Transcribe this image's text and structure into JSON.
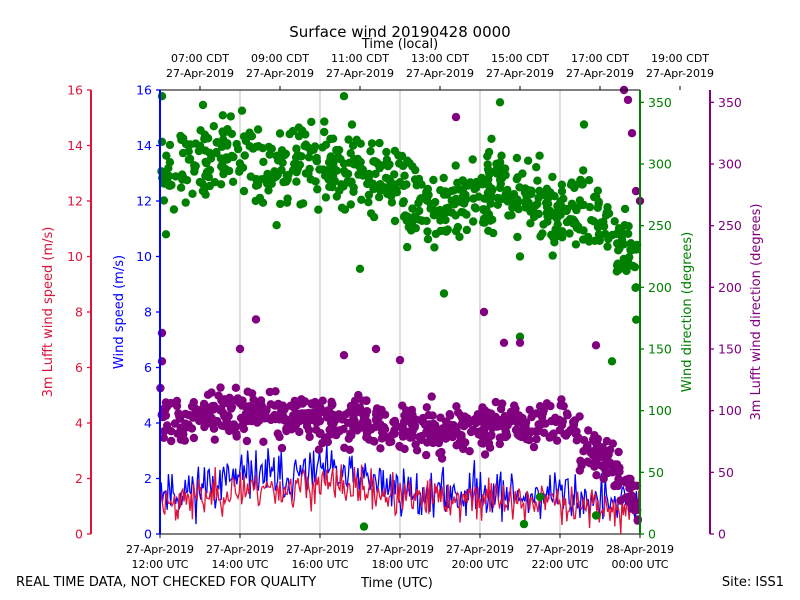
{
  "chart_data": {
    "type": "scatter",
    "title": "Surface wind 20190428 0000",
    "top_axis_label": "Time (local)",
    "xlabel": "Time (UTC)",
    "top_ticks": [
      {
        "time": "07:00 CDT",
        "date": "27-Apr-2019"
      },
      {
        "time": "09:00 CDT",
        "date": "27-Apr-2019"
      },
      {
        "time": "11:00 CDT",
        "date": "27-Apr-2019"
      },
      {
        "time": "13:00 CDT",
        "date": "27-Apr-2019"
      },
      {
        "time": "15:00 CDT",
        "date": "27-Apr-2019"
      },
      {
        "time": "17:00 CDT",
        "date": "27-Apr-2019"
      },
      {
        "time": "19:00 CDT",
        "date": "27-Apr-2019"
      }
    ],
    "bottom_ticks": [
      {
        "date": "27-Apr-2019",
        "time": "12:00 UTC"
      },
      {
        "date": "27-Apr-2019",
        "time": "14:00 UTC"
      },
      {
        "date": "27-Apr-2019",
        "time": "16:00 UTC"
      },
      {
        "date": "27-Apr-2019",
        "time": "18:00 UTC"
      },
      {
        "date": "27-Apr-2019",
        "time": "20:00 UTC"
      },
      {
        "date": "27-Apr-2019",
        "time": "22:00 UTC"
      },
      {
        "date": "28-Apr-2019",
        "time": "00:00 UTC"
      }
    ],
    "xlim_hours_utc": [
      12.0,
      24.0
    ],
    "axes": {
      "lufft_speed": {
        "label": "3m Lufft wind speed (m/s)",
        "ylim": [
          0,
          16
        ],
        "ticks": [
          "0",
          "2",
          "4",
          "6",
          "8",
          "10",
          "12",
          "14",
          "16"
        ],
        "color": "#dc143c"
      },
      "wind_speed": {
        "label": "Wind speed (m/s)",
        "ylim": [
          0,
          16
        ],
        "ticks": [
          "0",
          "2",
          "4",
          "6",
          "8",
          "10",
          "12",
          "14",
          "16"
        ],
        "color": "#0000ff"
      },
      "wind_dir": {
        "label": "Wind direction (degrees)",
        "ylim": [
          0,
          360
        ],
        "ticks": [
          "0",
          "50",
          "100",
          "150",
          "200",
          "250",
          "300",
          "350"
        ],
        "color": "#008000"
      },
      "lufft_dir": {
        "label": "3m Lufft wind direction (degrees)",
        "ylim": [
          0,
          360
        ],
        "ticks": [
          "0",
          "50",
          "100",
          "150",
          "200",
          "250",
          "300",
          "350"
        ],
        "color": "#800080"
      }
    },
    "series": [
      {
        "name": "Wind speed",
        "kind": "line",
        "axis": "wind_speed",
        "color": "#0000ff",
        "points": [
          [
            12,
            1.6
          ],
          [
            12.5,
            1.5
          ],
          [
            13,
            1.7
          ],
          [
            13.5,
            1.9
          ],
          [
            14,
            2.0
          ],
          [
            14.5,
            2.2
          ],
          [
            15,
            2.0
          ],
          [
            15.5,
            2.1
          ],
          [
            16,
            2.3
          ],
          [
            16.5,
            2.1
          ],
          [
            17,
            2.0
          ],
          [
            17.5,
            1.8
          ],
          [
            18,
            1.6
          ],
          [
            18.5,
            1.4
          ],
          [
            19,
            1.5
          ],
          [
            19.5,
            1.4
          ],
          [
            20,
            1.6
          ],
          [
            20.5,
            1.5
          ],
          [
            21,
            1.3
          ],
          [
            21.5,
            1.4
          ],
          [
            22,
            1.5
          ],
          [
            22.5,
            1.3
          ],
          [
            23,
            1.2
          ],
          [
            23.5,
            1.0
          ],
          [
            24,
            1.1
          ]
        ],
        "noise": 0.6
      },
      {
        "name": "3m Lufft wind speed",
        "kind": "line",
        "axis": "lufft_speed",
        "color": "#dc143c",
        "points": [
          [
            12,
            1.2
          ],
          [
            12.5,
            1.2
          ],
          [
            13,
            1.3
          ],
          [
            13.5,
            1.5
          ],
          [
            14,
            1.6
          ],
          [
            14.5,
            1.7
          ],
          [
            15,
            1.6
          ],
          [
            15.5,
            1.7
          ],
          [
            16,
            1.8
          ],
          [
            16.5,
            1.7
          ],
          [
            17,
            1.6
          ],
          [
            17.5,
            1.5
          ],
          [
            18,
            1.3
          ],
          [
            18.5,
            1.2
          ],
          [
            19,
            1.3
          ],
          [
            19.5,
            1.2
          ],
          [
            20,
            1.3
          ],
          [
            20.5,
            1.3
          ],
          [
            21,
            1.1
          ],
          [
            21.5,
            1.2
          ],
          [
            22,
            1.2
          ],
          [
            22.5,
            1.1
          ],
          [
            23,
            1.0
          ],
          [
            23.5,
            0.8
          ],
          [
            24,
            0.9
          ]
        ],
        "noise": 0.5
      },
      {
        "name": "Wind direction",
        "kind": "scatter",
        "axis": "wind_dir",
        "color": "#008000",
        "points": [
          [
            12,
            295
          ],
          [
            12.5,
            300
          ],
          [
            13,
            305
          ],
          [
            13.5,
            310
          ],
          [
            14,
            305
          ],
          [
            14.5,
            300
          ],
          [
            15,
            298
          ],
          [
            15.5,
            300
          ],
          [
            16,
            303
          ],
          [
            16.5,
            300
          ],
          [
            17,
            295
          ],
          [
            17.5,
            290
          ],
          [
            18,
            280
          ],
          [
            18.5,
            270
          ],
          [
            19,
            262
          ],
          [
            19.5,
            265
          ],
          [
            20,
            275
          ],
          [
            20.5,
            285
          ],
          [
            21,
            275
          ],
          [
            21.5,
            268
          ],
          [
            22,
            262
          ],
          [
            22.5,
            268
          ],
          [
            23,
            255
          ],
          [
            23.5,
            235
          ],
          [
            24,
            220
          ]
        ],
        "spread": 22,
        "count": 650,
        "outliers": [
          [
            12.05,
            355
          ],
          [
            12.05,
            318
          ],
          [
            12.15,
            243
          ],
          [
            14.1,
            278
          ],
          [
            16.6,
            355
          ],
          [
            17.0,
            215
          ],
          [
            17.1,
            6
          ],
          [
            19.1,
            195
          ],
          [
            20.5,
            350
          ],
          [
            21.0,
            225
          ],
          [
            21.0,
            160
          ],
          [
            21.1,
            8
          ],
          [
            21.5,
            30
          ],
          [
            22.6,
            332
          ],
          [
            22.9,
            15
          ],
          [
            23.3,
            140
          ],
          [
            23.6,
            235
          ],
          [
            23.9,
            200
          ]
        ]
      },
      {
        "name": "3m Lufft wind direction",
        "kind": "scatter",
        "axis": "lufft_dir",
        "color": "#800080",
        "points": [
          [
            12,
            95
          ],
          [
            12.5,
            92
          ],
          [
            13,
            95
          ],
          [
            13.5,
            97
          ],
          [
            14,
            97
          ],
          [
            14.5,
            97
          ],
          [
            15,
            95
          ],
          [
            15.5,
            95
          ],
          [
            16,
            92
          ],
          [
            16.5,
            90
          ],
          [
            17,
            90
          ],
          [
            17.5,
            88
          ],
          [
            18,
            86
          ],
          [
            18.5,
            85
          ],
          [
            19,
            85
          ],
          [
            19.5,
            85
          ],
          [
            20,
            85
          ],
          [
            20.5,
            87
          ],
          [
            21,
            90
          ],
          [
            21.5,
            88
          ],
          [
            22,
            85
          ],
          [
            22.5,
            75
          ],
          [
            23,
            65
          ],
          [
            23.5,
            45
          ],
          [
            24,
            25
          ]
        ],
        "spread": 13,
        "count": 650,
        "outliers": [
          [
            12.05,
            163
          ],
          [
            12.05,
            140
          ],
          [
            14.0,
            150
          ],
          [
            14.4,
            174
          ],
          [
            16.6,
            145
          ],
          [
            17.4,
            150
          ],
          [
            18.0,
            141
          ],
          [
            19.4,
            338
          ],
          [
            20.1,
            180
          ],
          [
            20.6,
            155
          ],
          [
            21.0,
            155
          ],
          [
            22.9,
            153
          ],
          [
            23.4,
            40
          ],
          [
            23.6,
            360
          ],
          [
            23.7,
            352
          ],
          [
            23.8,
            325
          ],
          [
            23.9,
            278
          ],
          [
            24.0,
            270
          ]
        ]
      }
    ]
  },
  "notes": {
    "quality": "REAL TIME DATA, NOT CHECKED FOR QUALITY",
    "site": "Site: ISS1"
  }
}
